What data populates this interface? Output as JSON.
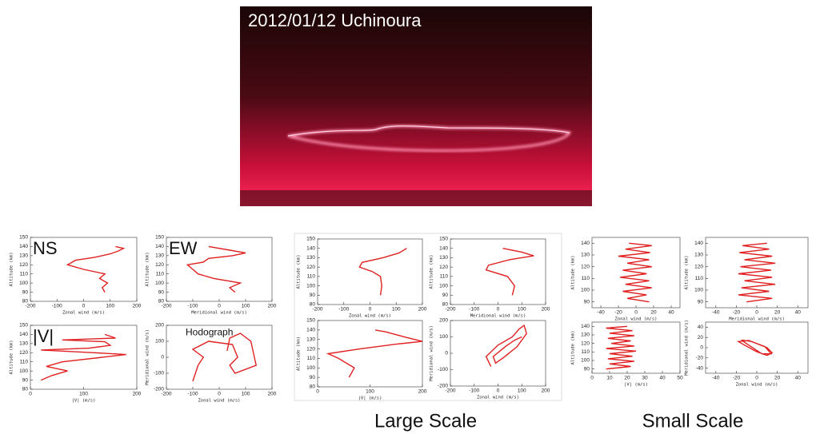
{
  "photo": {
    "caption": "2012/01/12   Uchinoura"
  },
  "groups": {
    "large": "Large Scale",
    "small": "Small Scale"
  },
  "chart_data": [
    {
      "type": "line",
      "label": "NS",
      "x_label": "Zonal wind (m/s)",
      "y_label": "Altitude (km)",
      "color": "#e02020",
      "xlim": [
        -200,
        200
      ],
      "xticks": [
        -200,
        -100,
        0,
        100,
        200
      ],
      "ylim": [
        80,
        150
      ],
      "yticks": [
        80,
        90,
        100,
        110,
        120,
        130,
        140,
        150
      ],
      "x": [
        80,
        70,
        90,
        60,
        80,
        0,
        -60,
        -30,
        40,
        100,
        130,
        150,
        120
      ],
      "values": [
        90,
        95,
        100,
        105,
        110,
        115,
        120,
        125,
        128,
        132,
        135,
        138,
        140
      ]
    },
    {
      "type": "line",
      "label": "EW",
      "x_label": "Meridional wind (m/s)",
      "y_label": "Altitude (km)",
      "color": "#e02020",
      "xlim": [
        -200,
        200
      ],
      "xticks": [
        -200,
        -100,
        0,
        100,
        200
      ],
      "ylim": [
        80,
        150
      ],
      "yticks": [
        80,
        90,
        100,
        110,
        120,
        130,
        140,
        150
      ],
      "x": [
        60,
        40,
        80,
        -20,
        -80,
        -100,
        -120,
        -60,
        -40,
        50,
        100,
        40,
        -40
      ],
      "values": [
        90,
        95,
        100,
        105,
        110,
        115,
        120,
        123,
        127,
        130,
        133,
        136,
        140
      ]
    },
    {
      "type": "line",
      "label": "|V|",
      "x_label": "|V| (m/s)",
      "y_label": "Altitude (km)",
      "color": "#e02020",
      "xlim": [
        0,
        200
      ],
      "xticks": [
        0,
        100,
        200
      ],
      "ylim": [
        80,
        150
      ],
      "yticks": [
        80,
        90,
        100,
        110,
        120,
        130,
        140,
        150
      ],
      "x": [
        20,
        40,
        70,
        30,
        60,
        180,
        120,
        20,
        110,
        150,
        140,
        60,
        160,
        140
      ],
      "values": [
        90,
        95,
        100,
        105,
        110,
        118,
        120,
        123,
        125,
        128,
        132,
        134,
        136,
        140
      ]
    },
    {
      "type": "line",
      "label": "Hodograph",
      "x_label": "Zonal wind (m/s)",
      "y_label": "Meridional wind (m/s)",
      "color": "#e02020",
      "xlim": [
        -200,
        200
      ],
      "xticks": [
        -200,
        -100,
        0,
        100,
        200
      ],
      "ylim": [
        -200,
        200
      ],
      "yticks": [
        -200,
        -100,
        0,
        100,
        200
      ],
      "x": [
        -100,
        -80,
        -60,
        -100,
        -40,
        50,
        70,
        40,
        60,
        140,
        120,
        80,
        40,
        30
      ],
      "values": [
        -150,
        -50,
        0,
        50,
        100,
        80,
        0,
        -50,
        -100,
        -50,
        100,
        150,
        120,
        40
      ]
    },
    {
      "type": "line",
      "x_label": "Zonal wind (m/s)",
      "y_label": "Altitude (km)",
      "color": "#e02020",
      "xlim": [
        -200,
        200
      ],
      "xticks": [
        -200,
        -100,
        0,
        100,
        200
      ],
      "ylim": [
        80,
        150
      ],
      "yticks": [
        80,
        90,
        100,
        110,
        120,
        130,
        140,
        150
      ],
      "x": [
        40,
        45,
        40,
        10,
        -40,
        -30,
        50,
        110,
        140
      ],
      "values": [
        90,
        100,
        110,
        115,
        120,
        125,
        130,
        135,
        140
      ]
    },
    {
      "type": "line",
      "x_label": "Meridional wind (m/s)",
      "y_label": "Altitude (km)",
      "color": "#e02020",
      "xlim": [
        -200,
        200
      ],
      "xticks": [
        -200,
        -100,
        0,
        100,
        200
      ],
      "ylim": [
        80,
        150
      ],
      "yticks": [
        80,
        90,
        100,
        110,
        120,
        130,
        140,
        150
      ],
      "x": [
        60,
        70,
        40,
        -50,
        -40,
        50,
        150,
        100,
        20
      ],
      "values": [
        90,
        100,
        110,
        117,
        122,
        128,
        132,
        136,
        140
      ]
    },
    {
      "type": "line",
      "x_label": "|V| (m/s)",
      "y_label": "Altitude (km)",
      "color": "#e02020",
      "xlim": [
        0,
        200
      ],
      "xticks": [
        0,
        100,
        200
      ],
      "ylim": [
        80,
        150
      ],
      "yticks": [
        80,
        90,
        100,
        110,
        120,
        130,
        140,
        150
      ],
      "x": [
        60,
        70,
        40,
        20,
        80,
        150,
        200,
        170,
        130,
        110
      ],
      "values": [
        90,
        100,
        110,
        115,
        120,
        125,
        128,
        132,
        138,
        140
      ]
    },
    {
      "type": "line",
      "x_label": "Zonal wind (m/s)",
      "y_label": "Meridional wind (m/s)",
      "color": "#e02020",
      "xlim": [
        -200,
        200
      ],
      "xticks": [
        -200,
        -100,
        0,
        100,
        200
      ],
      "ylim": [
        -200,
        200
      ],
      "yticks": [
        -200,
        -100,
        0,
        100,
        200
      ],
      "x": [
        -30,
        -50,
        0,
        60,
        90,
        110,
        120,
        80,
        20,
        -10,
        -20,
        30,
        70,
        100
      ],
      "values": [
        -80,
        -20,
        50,
        100,
        150,
        170,
        120,
        40,
        -30,
        -60,
        -20,
        40,
        80,
        100
      ]
    },
    {
      "type": "line",
      "x_label": "Zonal wind (m/s)",
      "y_label": "Altitude (km)",
      "color": "#e02020",
      "xlim": [
        -50,
        50
      ],
      "xticks": [
        -40,
        -20,
        0,
        20,
        40
      ],
      "ylim": [
        85,
        145
      ],
      "yticks": [
        90,
        100,
        110,
        120,
        130,
        140
      ],
      "x": [
        15,
        -10,
        12,
        -15,
        18,
        -12,
        15,
        -18,
        12,
        -15,
        18,
        -10,
        15,
        -20,
        16,
        -12,
        18,
        -8
      ],
      "values": [
        90,
        93,
        96,
        99,
        102,
        105,
        108,
        111,
        114,
        117,
        120,
        123,
        126,
        129,
        132,
        135,
        138,
        140
      ]
    },
    {
      "type": "line",
      "x_label": "Meridional wind (m/s)",
      "y_label": "Altitude (km)",
      "color": "#e02020",
      "xlim": [
        -50,
        50
      ],
      "xticks": [
        -40,
        -20,
        0,
        20,
        40
      ],
      "ylim": [
        85,
        145
      ],
      "yticks": [
        90,
        100,
        110,
        120,
        130,
        140
      ],
      "x": [
        -10,
        15,
        -18,
        12,
        -15,
        18,
        -12,
        15,
        -18,
        14,
        -16,
        18,
        -12,
        15,
        -17,
        12,
        -14,
        10
      ],
      "values": [
        90,
        93,
        96,
        99,
        102,
        105,
        108,
        111,
        114,
        117,
        120,
        123,
        126,
        129,
        132,
        135,
        138,
        140
      ]
    },
    {
      "type": "line",
      "x_label": "|V| (m/s)",
      "y_label": "Altitude (km)",
      "color": "#e02020",
      "xlim": [
        0,
        50
      ],
      "xticks": [
        0,
        10,
        20,
        30,
        40,
        50
      ],
      "ylim": [
        85,
        145
      ],
      "yticks": [
        90,
        100,
        110,
        120,
        130,
        140
      ],
      "x": [
        8,
        22,
        10,
        24,
        9,
        23,
        10,
        25,
        8,
        24,
        11,
        22,
        9,
        24,
        10,
        23,
        8,
        20
      ],
      "values": [
        90,
        93,
        96,
        99,
        102,
        105,
        108,
        111,
        114,
        117,
        120,
        123,
        126,
        129,
        132,
        135,
        138,
        140
      ]
    },
    {
      "type": "line",
      "x_label": "Zonal wind (m/s)",
      "y_label": "Meridional wind (m/s)",
      "color": "#e02020",
      "xlim": [
        -50,
        50
      ],
      "xticks": [
        -40,
        -20,
        0,
        20,
        40
      ],
      "ylim": [
        -50,
        50
      ],
      "yticks": [
        -40,
        -20,
        0,
        20,
        40
      ],
      "x": [
        -15,
        -5,
        10,
        15,
        10,
        0,
        -12,
        -18,
        -8,
        8,
        14,
        5,
        -10,
        -15
      ],
      "values": [
        15,
        12,
        0,
        -10,
        -15,
        -8,
        5,
        12,
        14,
        2,
        -12,
        -12,
        8,
        15
      ]
    }
  ]
}
